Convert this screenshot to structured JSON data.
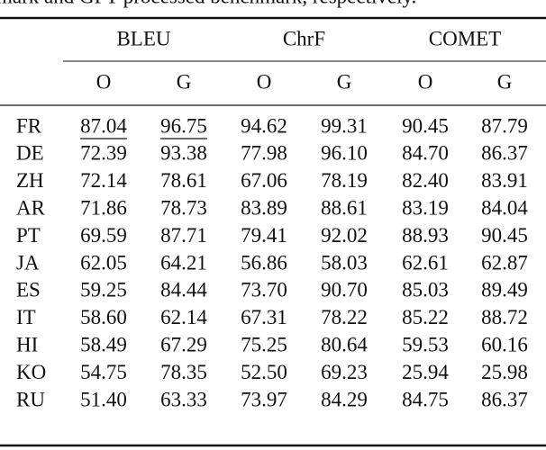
{
  "caption": "mark and GPT processed benchmark, respectively.",
  "table": {
    "groups": [
      "BLEU",
      "ChrF",
      "COMET"
    ],
    "subheaders": [
      "O",
      "G",
      "O",
      "G",
      "O",
      "G"
    ],
    "rows": [
      {
        "label": "FR",
        "values": [
          "87.04",
          "96.75",
          "94.62",
          "99.31",
          "90.45",
          "87.79"
        ]
      },
      {
        "label": "DE",
        "values": [
          "72.39",
          "93.38",
          "77.98",
          "96.10",
          "84.70",
          "86.37"
        ]
      },
      {
        "label": "ZH",
        "values": [
          "72.14",
          "78.61",
          "67.06",
          "78.19",
          "82.40",
          "83.91"
        ]
      },
      {
        "label": "AR",
        "values": [
          "71.86",
          "78.73",
          "83.89",
          "88.61",
          "83.19",
          "84.04"
        ]
      },
      {
        "label": "PT",
        "values": [
          "69.59",
          "87.71",
          "79.41",
          "92.02",
          "88.93",
          "90.45"
        ]
      },
      {
        "label": "JA",
        "values": [
          "62.05",
          "64.21",
          "56.86",
          "58.03",
          "62.61",
          "62.87"
        ]
      },
      {
        "label": "ES",
        "values": [
          "59.25",
          "84.44",
          "73.70",
          "90.70",
          "85.03",
          "89.49"
        ]
      },
      {
        "label": "IT",
        "values": [
          "58.60",
          "62.14",
          "67.31",
          "78.22",
          "85.22",
          "88.72"
        ]
      },
      {
        "label": "HI",
        "values": [
          "58.49",
          "67.29",
          "75.25",
          "80.64",
          "59.53",
          "60.16"
        ]
      },
      {
        "label": "KO",
        "values": [
          "54.75",
          "78.35",
          "52.50",
          "69.23",
          "25.94",
          "25.98"
        ]
      },
      {
        "label": "RU",
        "values": [
          "51.40",
          "63.33",
          "73.97",
          "84.29",
          "84.75",
          "86.37"
        ]
      }
    ],
    "underlined": [
      [
        0,
        0
      ],
      [
        0,
        1
      ]
    ]
  }
}
